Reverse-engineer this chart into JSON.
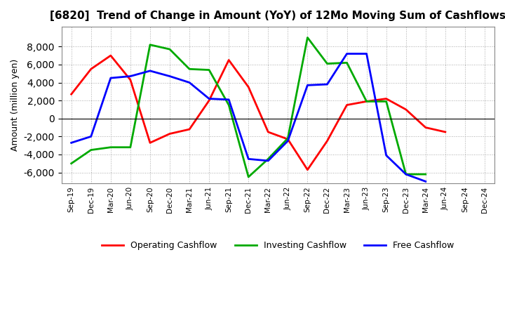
{
  "title": "[6820]  Trend of Change in Amount (YoY) of 12Mo Moving Sum of Cashflows",
  "ylabel": "Amount (million yen)",
  "x_labels": [
    "Sep-19",
    "Dec-19",
    "Mar-20",
    "Jun-20",
    "Sep-20",
    "Dec-20",
    "Mar-21",
    "Jun-21",
    "Sep-21",
    "Dec-21",
    "Mar-22",
    "Jun-22",
    "Sep-22",
    "Dec-22",
    "Mar-23",
    "Jun-23",
    "Sep-23",
    "Dec-23",
    "Mar-24",
    "Jun-24",
    "Sep-24",
    "Dec-24"
  ],
  "operating": [
    2700,
    5500,
    7000,
    4300,
    -2700,
    -1700,
    -1200,
    2000,
    6500,
    3500,
    -1500,
    -2300,
    -5700,
    -2500,
    1500,
    1900,
    2200,
    1000,
    -1000,
    -1500,
    null,
    null
  ],
  "investing": [
    -5000,
    -3500,
    -3200,
    -3200,
    8200,
    7700,
    5500,
    5400,
    1500,
    -6500,
    -4500,
    -2200,
    9000,
    6100,
    6200,
    1900,
    1900,
    -6200,
    -6200,
    null,
    null,
    null
  ],
  "free": [
    -2700,
    -2000,
    4500,
    4700,
    5300,
    4700,
    4000,
    2200,
    2100,
    -4500,
    -4700,
    -2500,
    3700,
    3800,
    7200,
    7200,
    -4100,
    -6200,
    -7000,
    null,
    null,
    null
  ],
  "operating_color": "#ff0000",
  "investing_color": "#00aa00",
  "free_color": "#0000ff",
  "ylim": [
    -7200,
    10200
  ],
  "yticks": [
    -6000,
    -4000,
    -2000,
    0,
    2000,
    4000,
    6000,
    8000
  ],
  "background_color": "#ffffff",
  "grid_color": "#aaaaaa"
}
